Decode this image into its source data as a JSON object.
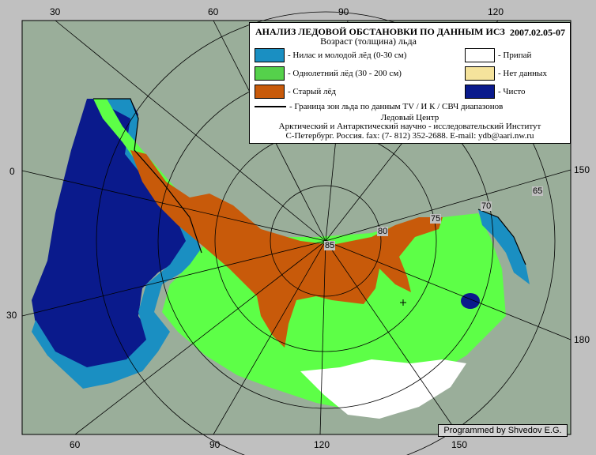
{
  "map": {
    "legend": {
      "title": "АНАЛИЗ ЛЕДОВОЙ ОБСТАНОВКИ ПО ДАННЫМ ИСЗ",
      "date": "2007.02.05-07",
      "subtitle": "Возраст (толщина) льда",
      "items": [
        {
          "label": "- Нилас и молодой лёд (0-30 см)",
          "color": "#1a8fc2"
        },
        {
          "label": "- Однолетний лёд (30 - 200 см)",
          "color": "#55d14b"
        },
        {
          "label": "- Старый лёд",
          "color": "#c85a0a"
        },
        {
          "label": "- Припай",
          "color": "#ffffff"
        },
        {
          "label": "- Нет данных",
          "color": "#f5e39c"
        },
        {
          "label": "- Чисто",
          "color": "#0a1a8c"
        }
      ],
      "boundary_label": "- Граница зон льда по данным  TV / И К / СВЧ диапазонов",
      "org_line1": "Ледовый Центр",
      "org_line2": "Арктический и Антарктический научно - исследовательский Институт",
      "org_line3": "С-Петербург.   Россия.   fax: (7- 812) 352-2688.   E-mail: ydb@aari.nw.ru"
    },
    "colors": {
      "land": "#9aae9a",
      "background": "#c0c0c0",
      "young_ice": "#1a8fc2",
      "first_year_ice": "#55d14b",
      "bright_first_year": "#5dff47",
      "old_ice": "#c85a0a",
      "fast_ice": "#ffffff",
      "open_water": "#0a1a8c"
    },
    "longitude_ticks_top": [
      "30",
      "60",
      "90",
      "120"
    ],
    "longitude_ticks_bottom": [
      "60",
      "90",
      "120",
      "150"
    ],
    "left_ticks": [
      "0",
      "30"
    ],
    "right_ticks": [
      "150",
      "180"
    ],
    "latitude_labels": [
      "85",
      "80",
      "75",
      "70",
      "65"
    ],
    "credit": "Programmed by Shvedov E.G."
  }
}
